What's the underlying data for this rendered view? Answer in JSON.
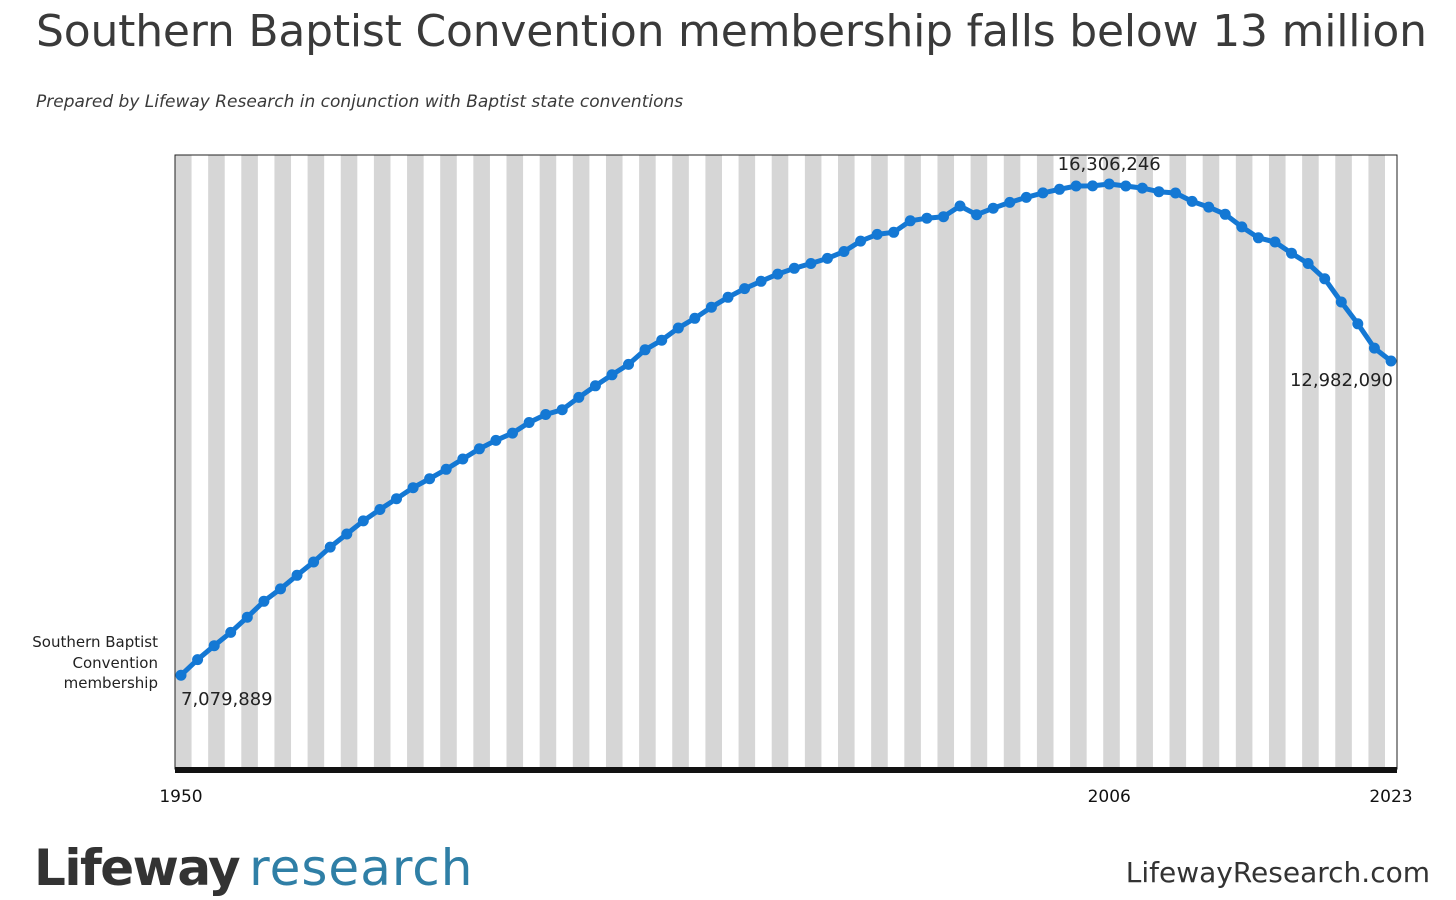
{
  "header": {
    "title": "Southern Baptist Convention membership falls below 13 million",
    "subtitle": "Prepared by Lifeway Research in conjunction with Baptist state conventions"
  },
  "footer": {
    "logo_primary": "Lifeway",
    "logo_secondary": "research",
    "website": "LifewayResearch.com"
  },
  "colors": {
    "line": "#1478d4",
    "stripe": "#d6d6d6",
    "axis": "#111111",
    "logo_accent": "#2f7fa6"
  },
  "chart_data": {
    "type": "line",
    "series": [
      {
        "name": "Southern Baptist Convention membership",
        "x": [
          1950,
          1951,
          1952,
          1953,
          1954,
          1955,
          1956,
          1957,
          1958,
          1959,
          1960,
          1961,
          1962,
          1963,
          1964,
          1965,
          1966,
          1967,
          1968,
          1969,
          1970,
          1971,
          1972,
          1973,
          1974,
          1975,
          1976,
          1977,
          1978,
          1979,
          1980,
          1981,
          1982,
          1983,
          1984,
          1985,
          1986,
          1987,
          1988,
          1989,
          1990,
          1991,
          1992,
          1993,
          1994,
          1995,
          1996,
          1997,
          1998,
          1999,
          2000,
          2001,
          2002,
          2003,
          2004,
          2005,
          2006,
          2007,
          2008,
          2009,
          2010,
          2011,
          2012,
          2013,
          2014,
          2015,
          2016,
          2017,
          2018,
          2019,
          2020,
          2021,
          2022,
          2023
        ],
        "values": [
          7079889,
          7373498,
          7634493,
          7883708,
          8169491,
          8467439,
          8700480,
          8956923,
          9206758,
          9485276,
          9731591,
          9978139,
          10193052,
          10395940,
          10601515,
          10770573,
          10947389,
          11140537,
          11332229,
          11489613,
          11628032,
          11826463,
          11976739,
          12067284,
          12297346,
          12515842,
          12722671,
          12917992,
          13191394,
          13372757,
          13600126,
          13782644,
          13991709,
          14178051,
          14341822,
          14477364,
          14613638,
          14722617,
          14812844,
          14907826,
          15038409,
          15232347,
          15358866,
          15398642,
          15614060,
          15663296,
          15691964,
          15891514,
          15729356,
          15851756,
          15960308,
          16052920,
          16137736,
          16206718,
          16267494,
          16270315,
          16306246,
          16266920,
          16228438,
          16160088,
          16136044,
          15978112,
          15872404,
          15735640,
          15499173,
          15294764,
          15216978,
          15005638,
          14813234,
          14525579,
          14089947,
          13680493,
          13223122,
          12982090
        ]
      }
    ],
    "x_ticks": [
      "1950",
      "2006",
      "2023"
    ],
    "annotations": [
      {
        "x": 1950,
        "label": "7,079,889",
        "position": "below-right"
      },
      {
        "x": 2006,
        "label": "16,306,246",
        "position": "above"
      },
      {
        "x": 2023,
        "label": "12,982,090",
        "position": "below-left"
      }
    ],
    "xlim": [
      1950,
      2023
    ],
    "ylim": [
      5300000,
      16850000
    ],
    "y_axis_visible": false,
    "grid": "alternating vertical stripes",
    "legend": "none"
  }
}
